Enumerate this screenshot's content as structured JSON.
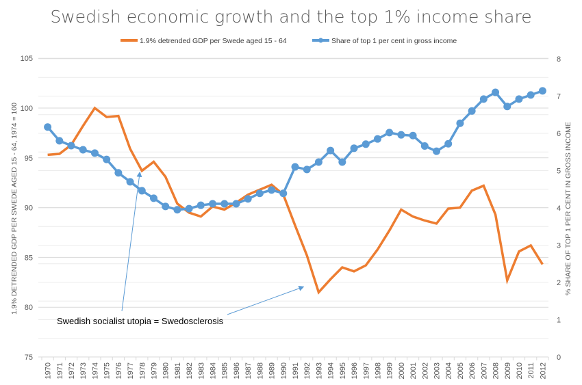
{
  "chart_data": {
    "type": "line",
    "title": "Swedish economic growth and the top 1% income share",
    "xlabel": "",
    "ylabel": "1.9% DETRENDED GDP PER SWEDE AGED 15 - 64, 1974 = 100",
    "y2label": "% SHARE OF TOP 1 PER CENT IN GROSS INCOME",
    "ylim": [
      75,
      105
    ],
    "y2lim": [
      0,
      8
    ],
    "yticks": [
      "75",
      "80",
      "85",
      "90",
      "95",
      "100",
      "105"
    ],
    "y2ticks": [
      "0",
      "1",
      "2",
      "3",
      "4",
      "5",
      "6",
      "7",
      "8"
    ],
    "grid": true,
    "legend_position": "top",
    "categories": [
      "1970",
      "1971",
      "1972",
      "1973",
      "1974",
      "1975",
      "1976",
      "1977",
      "1978",
      "1979",
      "1980",
      "1981",
      "1982",
      "1983",
      "1984",
      "1985",
      "1986",
      "1987",
      "1988",
      "1989",
      "1990",
      "1991",
      "1992",
      "1993",
      "1994",
      "1995",
      "1996",
      "1997",
      "1998",
      "1999",
      "2000",
      "2001",
      "2002",
      "2003",
      "2004",
      "2005",
      "2006",
      "2007",
      "2008",
      "2009",
      "2010",
      "2011",
      "2012"
    ],
    "series": [
      {
        "name": "1.9% detrended GDP per Swede aged 15 - 64",
        "axis": "left",
        "color": "#ed7d31",
        "markers": false,
        "values": [
          95.3,
          95.4,
          96.3,
          98.2,
          100.0,
          99.1,
          99.2,
          95.9,
          93.7,
          94.6,
          93.1,
          90.4,
          89.5,
          89.1,
          90.1,
          89.8,
          90.5,
          91.3,
          91.8,
          92.3,
          91.3,
          88.2,
          85.2,
          81.5,
          82.8,
          84.0,
          83.6,
          84.2,
          85.8,
          87.7,
          89.8,
          89.1,
          88.7,
          88.4,
          89.9,
          90.0,
          91.7,
          92.2,
          89.3,
          82.7,
          85.6,
          86.2,
          84.3
        ]
      },
      {
        "name": "Share of top 1 per cent in gross income",
        "axis": "right",
        "color": "#5b9bd5",
        "markers": true,
        "values": [
          6.17,
          5.8,
          5.67,
          5.56,
          5.47,
          5.3,
          4.94,
          4.7,
          4.46,
          4.26,
          4.04,
          3.95,
          3.98,
          4.07,
          4.11,
          4.11,
          4.11,
          4.24,
          4.39,
          4.48,
          4.39,
          5.1,
          5.03,
          5.23,
          5.54,
          5.23,
          5.6,
          5.71,
          5.85,
          6.02,
          5.96,
          5.94,
          5.66,
          5.52,
          5.72,
          6.27,
          6.6,
          6.92,
          7.1,
          6.72,
          6.92,
          7.03,
          7.14
        ]
      }
    ],
    "annotations": [
      {
        "text": "Swedish socialist utopia = Swedosclerosis",
        "arrows_to": [
          "1978",
          "1993"
        ]
      }
    ]
  }
}
